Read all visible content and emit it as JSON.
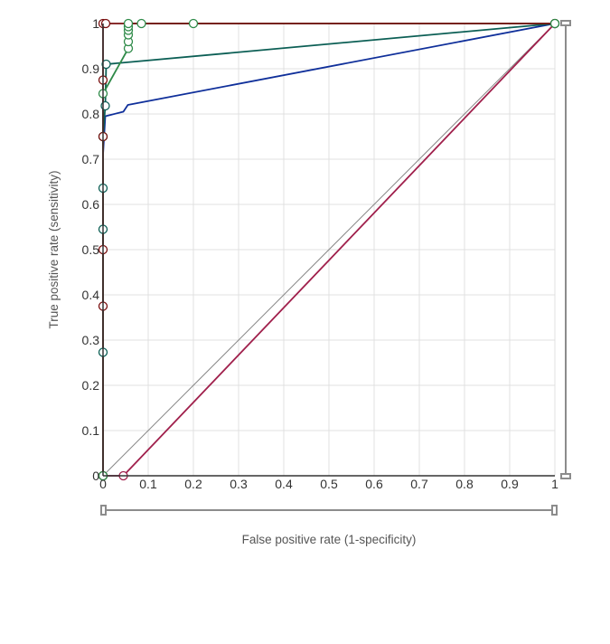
{
  "chart_data": {
    "type": "line",
    "title": "",
    "xlabel": "False positive rate (1-specificity)",
    "ylabel": "True positive rate (sensitivity)",
    "xlim": [
      0,
      1
    ],
    "ylim": [
      0,
      1
    ],
    "x_ticks": [
      "0",
      "0.1",
      "0.2",
      "0.3",
      "0.4",
      "0.5",
      "0.6",
      "0.7",
      "0.8",
      "0.9",
      "1"
    ],
    "y_ticks": [
      "0",
      "0.1",
      "0.2",
      "0.3",
      "0.4",
      "0.5",
      "0.6",
      "0.7",
      "0.8",
      "0.9",
      "1"
    ],
    "grid": true,
    "reference_line": {
      "x": [
        0,
        1
      ],
      "y": [
        0,
        1
      ],
      "color": "#888888"
    },
    "series": [
      {
        "color": "#a0204c",
        "markers": false,
        "points": [
          [
            0,
            0
          ],
          [
            0.045,
            0
          ],
          [
            1,
            1
          ]
        ]
      },
      {
        "color": "#0f2f9a",
        "markers": false,
        "points": [
          [
            0,
            0
          ],
          [
            0,
            0.71
          ],
          [
            0.005,
            0.795
          ],
          [
            0.045,
            0.805
          ],
          [
            0.055,
            0.82
          ],
          [
            1,
            1
          ]
        ]
      },
      {
        "color": "#0c5f55",
        "markers": true,
        "points": [
          [
            0,
            0
          ],
          [
            0,
            0.273
          ],
          [
            0,
            0.545
          ],
          [
            0,
            0.636
          ],
          [
            0,
            0.75
          ],
          [
            0.005,
            0.818
          ],
          [
            0.007,
            0.91
          ],
          [
            1,
            1
          ]
        ]
      },
      {
        "color": "#2e8a48",
        "markers": true,
        "points": [
          [
            0,
            0
          ],
          [
            0,
            0.75
          ],
          [
            0,
            0.845
          ],
          [
            0.056,
            0.945
          ],
          [
            0.056,
            0.96
          ],
          [
            0.056,
            0.975
          ],
          [
            0.056,
            0.985
          ],
          [
            0.056,
            0.993
          ],
          [
            0.056,
            1
          ],
          [
            0.085,
            1
          ],
          [
            0.2,
            1
          ],
          [
            1,
            1
          ]
        ]
      },
      {
        "color": "#7a1010",
        "markers": true,
        "points": [
          [
            0,
            0
          ],
          [
            0,
            0.375
          ],
          [
            0,
            0.5
          ],
          [
            0,
            0.75
          ],
          [
            0,
            0.875
          ],
          [
            0,
            1
          ],
          [
            0.006,
            1
          ],
          [
            1,
            1
          ]
        ]
      }
    ]
  }
}
